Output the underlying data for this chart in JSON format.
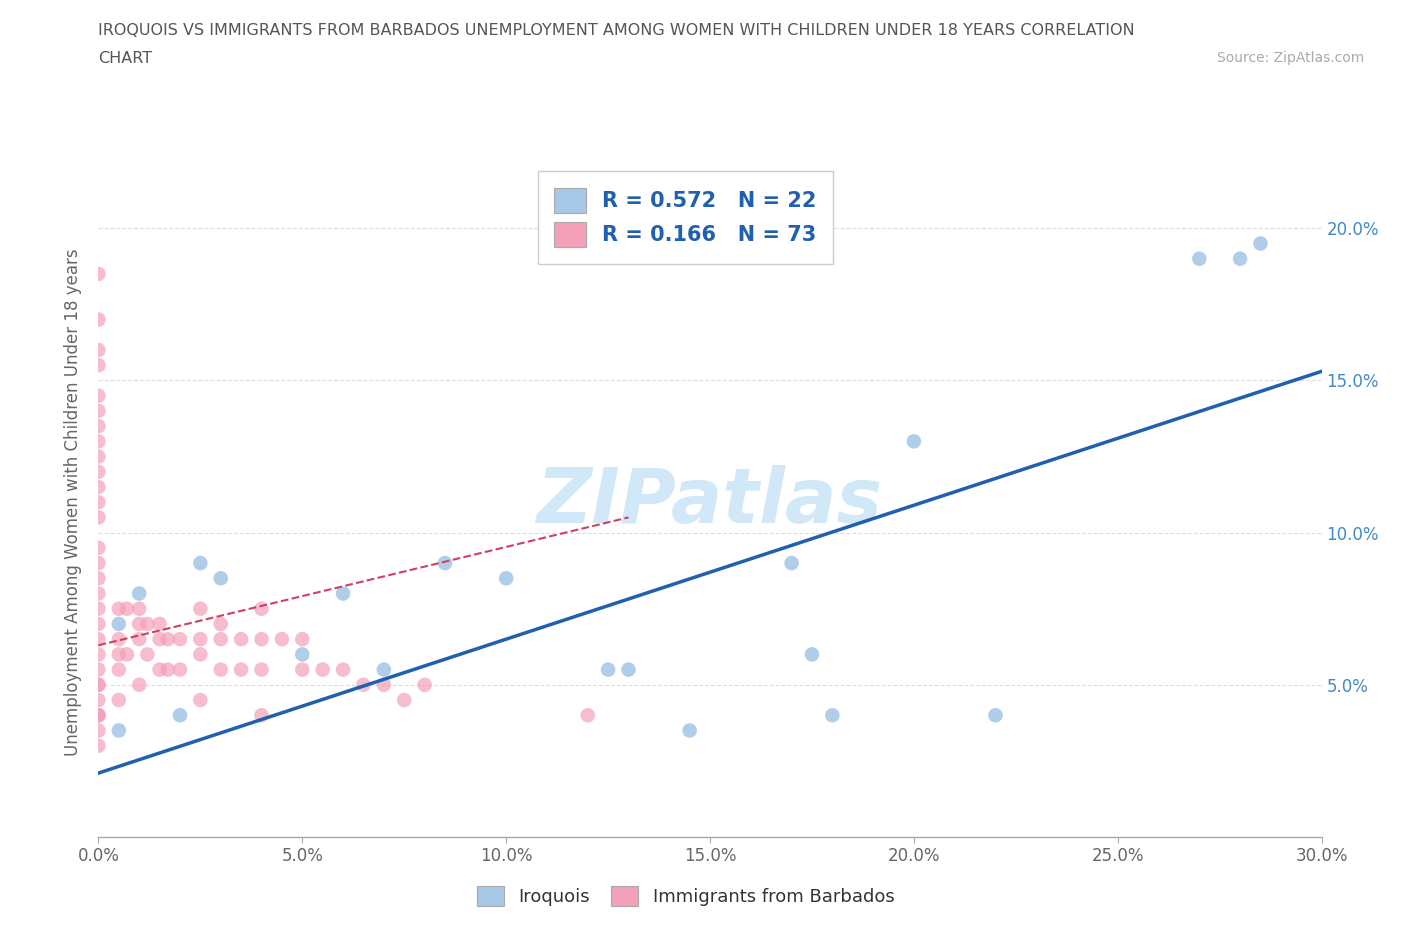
{
  "title_line1": "IROQUOIS VS IMMIGRANTS FROM BARBADOS UNEMPLOYMENT AMONG WOMEN WITH CHILDREN UNDER 18 YEARS CORRELATION",
  "title_line2": "CHART",
  "source": "Source: ZipAtlas.com",
  "ylabel": "Unemployment Among Women with Children Under 18 years",
  "xlim": [
    0.0,
    0.3
  ],
  "ylim": [
    0.0,
    0.22
  ],
  "xticks": [
    0.0,
    0.05,
    0.1,
    0.15,
    0.2,
    0.25,
    0.3
  ],
  "xtick_labels": [
    "0.0%",
    "5.0%",
    "10.0%",
    "15.0%",
    "20.0%",
    "25.0%",
    "30.0%"
  ],
  "yticks": [
    0.0,
    0.05,
    0.1,
    0.15,
    0.2
  ],
  "ytick_labels": [
    "",
    "5.0%",
    "10.0%",
    "15.0%",
    "20.0%"
  ],
  "iroquois_color": "#a8c8e8",
  "barbados_color": "#f4a0b8",
  "trend_iroquois_color": "#2060b0",
  "trend_barbados_color": "#d04060",
  "watermark_color": "#d0e8f8",
  "R_iroquois": 0.572,
  "N_iroquois": 22,
  "R_barbados": 0.166,
  "N_barbados": 73,
  "iroquois_x": [
    0.005,
    0.005,
    0.01,
    0.02,
    0.025,
    0.03,
    0.05,
    0.06,
    0.07,
    0.085,
    0.1,
    0.125,
    0.13,
    0.145,
    0.17,
    0.175,
    0.18,
    0.2,
    0.22,
    0.27,
    0.28,
    0.285
  ],
  "iroquois_y": [
    0.035,
    0.07,
    0.08,
    0.04,
    0.09,
    0.085,
    0.06,
    0.08,
    0.055,
    0.09,
    0.085,
    0.055,
    0.055,
    0.035,
    0.09,
    0.06,
    0.04,
    0.13,
    0.04,
    0.19,
    0.19,
    0.195
  ],
  "barbados_x": [
    0.0,
    0.0,
    0.0,
    0.0,
    0.0,
    0.0,
    0.0,
    0.0,
    0.0,
    0.0,
    0.0,
    0.0,
    0.0,
    0.0,
    0.0,
    0.0,
    0.0,
    0.0,
    0.0,
    0.0,
    0.0,
    0.0,
    0.0,
    0.0,
    0.0,
    0.0,
    0.0,
    0.0,
    0.0,
    0.0,
    0.005,
    0.005,
    0.005,
    0.005,
    0.005,
    0.007,
    0.007,
    0.01,
    0.01,
    0.01,
    0.01,
    0.012,
    0.012,
    0.015,
    0.015,
    0.015,
    0.017,
    0.017,
    0.02,
    0.02,
    0.025,
    0.025,
    0.025,
    0.025,
    0.03,
    0.03,
    0.03,
    0.035,
    0.035,
    0.04,
    0.04,
    0.04,
    0.04,
    0.045,
    0.05,
    0.05,
    0.055,
    0.06,
    0.065,
    0.07,
    0.075,
    0.08,
    0.12
  ],
  "barbados_y": [
    0.185,
    0.17,
    0.16,
    0.155,
    0.145,
    0.14,
    0.135,
    0.13,
    0.125,
    0.12,
    0.115,
    0.11,
    0.105,
    0.095,
    0.09,
    0.085,
    0.08,
    0.075,
    0.07,
    0.065,
    0.06,
    0.055,
    0.05,
    0.05,
    0.045,
    0.04,
    0.04,
    0.04,
    0.035,
    0.03,
    0.075,
    0.065,
    0.06,
    0.055,
    0.045,
    0.075,
    0.06,
    0.075,
    0.07,
    0.065,
    0.05,
    0.07,
    0.06,
    0.07,
    0.065,
    0.055,
    0.065,
    0.055,
    0.065,
    0.055,
    0.075,
    0.065,
    0.06,
    0.045,
    0.07,
    0.065,
    0.055,
    0.065,
    0.055,
    0.075,
    0.065,
    0.055,
    0.04,
    0.065,
    0.065,
    0.055,
    0.055,
    0.055,
    0.05,
    0.05,
    0.045,
    0.05,
    0.04
  ],
  "trend_irq_x0": 0.0,
  "trend_irq_x1": 0.3,
  "trend_irq_y0": 0.021,
  "trend_irq_y1": 0.153,
  "trend_bar_x0": 0.0,
  "trend_bar_x1": 0.13,
  "trend_bar_y0": 0.063,
  "trend_bar_y1": 0.105
}
